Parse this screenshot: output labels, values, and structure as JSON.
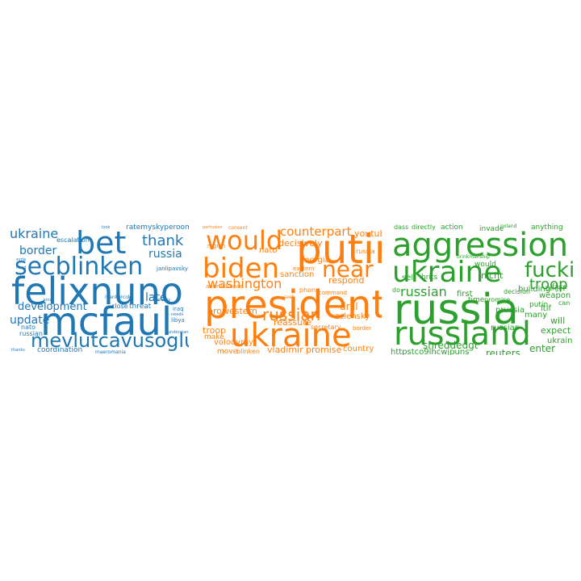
{
  "panels": [
    {
      "id": "wordcloud-1",
      "color": "#1f77b4",
      "words": [
        "felixnuno",
        "mcfaul",
        "bet",
        "secblinken",
        "mevlutcavusoglu",
        "ukraine",
        "thank",
        "border",
        "russia",
        "development",
        "update",
        "late",
        "ratemyskyperoom",
        "escalation",
        "close",
        "threat",
        "iraq",
        "libya",
        "needs",
        "nato",
        "russian",
        "coordination",
        "maeromania",
        "thanks",
        "ivankorcok",
        "janlipavsky",
        "understand",
        "enemy",
        "kind",
        "look",
        "syria",
        "need"
      ]
    },
    {
      "id": "wordcloud-2",
      "color": "#ff7f0e",
      "words": [
        "president",
        "ukraine",
        "putin",
        "biden",
        "would",
        "near",
        "washington",
        "russian",
        "counterpart",
        "youtube",
        "decisively",
        "nato",
        "georgia",
        "eastern",
        "sanction",
        "respond",
        "prowestern",
        "reassure",
        "zelensky",
        "troop",
        "volodymyr",
        "vladimir",
        "promise",
        "country",
        "move",
        "blinken",
        "secretary",
        "border",
        "drill",
        "command",
        "make",
        "phone",
        "andrusfrance",
        "region",
        "consent",
        "perhusion",
        "russia",
        "seek"
      ]
    },
    {
      "id": "wordcloud-3",
      "color": "#2ca02c",
      "words": [
        "aggression",
        "russia",
        "russland",
        "ukraine",
        "fuckin",
        "troop",
        "russian",
        "shreddedgt",
        "httpstco9lhcwjpuns",
        "reuters",
        "enter",
        "expect",
        "will",
        "many",
        "ltif",
        "ukrain",
        "weapon",
        "putin",
        "decision",
        "prussia",
        "russias",
        "promise",
        "time",
        "first",
        "nicht",
        "sell",
        "brits",
        "would",
        "building",
        "target",
        "face",
        "invade",
        "anything",
        "dass",
        "directly",
        "action",
        "poland",
        "brinkmanship",
        "can",
        "do"
      ]
    }
  ]
}
